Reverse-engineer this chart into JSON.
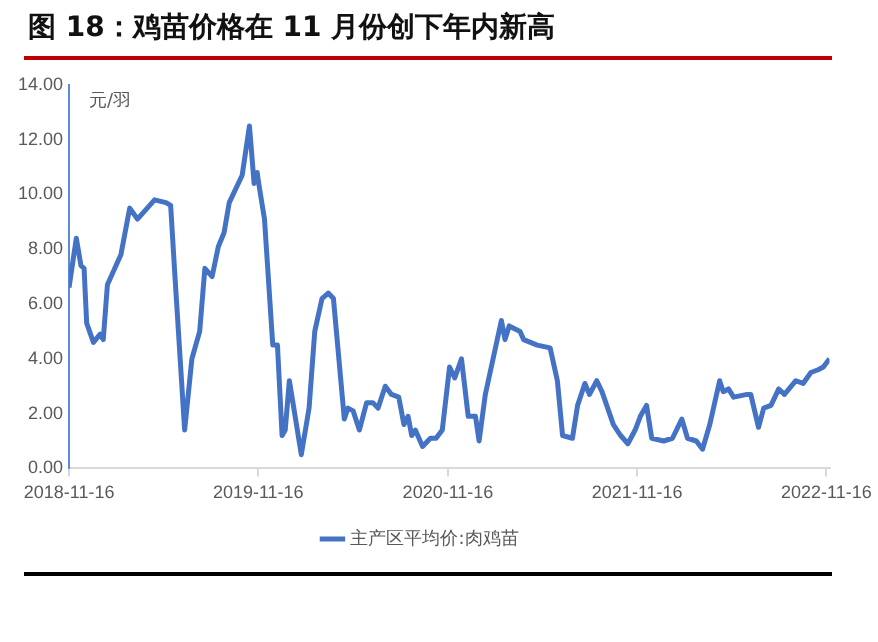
{
  "chart_data": {
    "type": "line",
    "title": "图 18：鸡苗价格在 11 月份创下年内新高",
    "ylabel": "元/羽",
    "x": [
      "2018-11-16",
      "2018-11-30",
      "2018-12-09",
      "2018-12-15",
      "2018-12-20",
      "2019-01-02",
      "2019-01-15",
      "2019-01-21",
      "2019-01-29",
      "2019-02-24",
      "2019-03-13",
      "2019-03-28",
      "2019-04-30",
      "2019-05-22",
      "2019-05-31",
      "2019-06-08",
      "2019-06-27",
      "2019-07-11",
      "2019-07-26",
      "2019-08-05",
      "2019-08-19",
      "2019-08-31",
      "2019-09-11",
      "2019-09-21",
      "2019-10-16",
      "2019-10-30",
      "2019-11-08",
      "2019-11-14",
      "2019-11-16",
      "2019-11-28",
      "2019-12-14",
      "2019-12-23",
      "2020-01-01",
      "2020-01-07",
      "2020-01-15",
      "2020-01-27",
      "2020-02-07",
      "2020-02-22",
      "2020-03-04",
      "2020-03-18",
      "2020-03-30",
      "2020-04-09",
      "2020-04-30",
      "2020-05-07",
      "2020-05-17",
      "2020-05-29",
      "2020-06-12",
      "2020-06-24",
      "2020-07-04",
      "2020-07-18",
      "2020-07-30",
      "2020-08-13",
      "2020-08-23",
      "2020-08-31",
      "2020-09-07",
      "2020-09-14",
      "2020-09-28",
      "2020-10-13",
      "2020-10-24",
      "2020-11-05",
      "2020-11-19",
      "2020-11-29",
      "2020-12-12",
      "2020-12-25",
      "2021-01-08",
      "2021-01-15",
      "2021-01-27",
      "2021-02-27",
      "2021-03-06",
      "2021-03-14",
      "2021-04-04",
      "2021-04-11",
      "2021-05-07",
      "2021-06-01",
      "2021-06-15",
      "2021-06-25",
      "2021-07-14",
      "2021-07-24",
      "2021-08-07",
      "2021-08-16",
      "2021-08-30",
      "2021-09-09",
      "2021-10-01",
      "2021-10-15",
      "2021-10-29",
      "2021-11-12",
      "2021-11-22",
      "2021-12-04",
      "2021-12-14",
      "2022-01-06",
      "2022-01-23",
      "2022-02-10",
      "2022-02-21",
      "2022-03-10",
      "2022-03-22",
      "2022-04-05",
      "2022-04-24",
      "2022-05-01",
      "2022-05-11",
      "2022-05-21",
      "2022-06-16",
      "2022-06-23",
      "2022-07-08",
      "2022-07-18",
      "2022-08-01",
      "2022-08-16",
      "2022-08-27",
      "2022-09-18",
      "2022-10-02",
      "2022-10-17",
      "2022-10-31",
      "2022-11-10",
      "2022-11-22"
    ],
    "series": [
      {
        "name": "主产区平均价:肉鸡苗",
        "color": "#4472c4",
        "values": [
          6.6,
          8.4,
          7.4,
          7.3,
          5.3,
          4.6,
          4.9,
          4.7,
          6.7,
          7.8,
          9.5,
          9.1,
          9.8,
          9.7,
          9.6,
          7.1,
          1.4,
          4.0,
          5.0,
          7.3,
          7.0,
          8.1,
          8.6,
          9.7,
          10.7,
          12.5,
          10.4,
          10.8,
          10.5,
          9.1,
          4.5,
          4.5,
          1.2,
          1.4,
          3.2,
          1.8,
          0.5,
          2.2,
          5.0,
          6.2,
          6.4,
          6.2,
          1.8,
          2.2,
          2.1,
          1.4,
          2.4,
          2.4,
          2.2,
          3.0,
          2.7,
          2.6,
          1.6,
          1.9,
          1.2,
          1.4,
          0.8,
          1.1,
          1.1,
          1.4,
          3.7,
          3.3,
          4.0,
          1.9,
          1.9,
          1.0,
          2.7,
          5.4,
          4.7,
          5.2,
          5.0,
          4.7,
          4.5,
          4.4,
          3.2,
          1.2,
          1.1,
          2.3,
          3.1,
          2.7,
          3.2,
          2.8,
          1.6,
          1.2,
          0.9,
          1.4,
          1.9,
          2.3,
          1.1,
          1.0,
          1.1,
          1.8,
          1.1,
          1.0,
          0.7,
          1.6,
          3.2,
          2.8,
          2.9,
          2.6,
          2.7,
          2.7,
          1.5,
          2.2,
          2.3,
          2.9,
          2.7,
          3.2,
          3.1,
          3.5,
          3.6,
          3.7,
          4.0
        ]
      }
    ],
    "xlim": [
      "2018-11-16",
      "2022-11-22"
    ],
    "xticks": [
      {
        "value": "2018-11-16",
        "label": "2018-11-16"
      },
      {
        "value": "2019-11-16",
        "label": "2019-11-16"
      },
      {
        "value": "2020-11-16",
        "label": "2020-11-16"
      },
      {
        "value": "2021-11-16",
        "label": "2021-11-16"
      },
      {
        "value": "2022-11-16",
        "label": "2022-11-16"
      }
    ],
    "ylim": [
      0,
      14
    ],
    "yticks": [
      {
        "value": 0,
        "label": "0.00"
      },
      {
        "value": 2,
        "label": "2.00"
      },
      {
        "value": 4,
        "label": "4.00"
      },
      {
        "value": 6,
        "label": "6.00"
      },
      {
        "value": 8,
        "label": "8.00"
      },
      {
        "value": 10,
        "label": "10.00"
      },
      {
        "value": 12,
        "label": "12.00"
      },
      {
        "value": 14,
        "label": "14.00"
      }
    ],
    "grid": false,
    "legend": "bottom",
    "marker": "none",
    "line_style": "solid"
  }
}
